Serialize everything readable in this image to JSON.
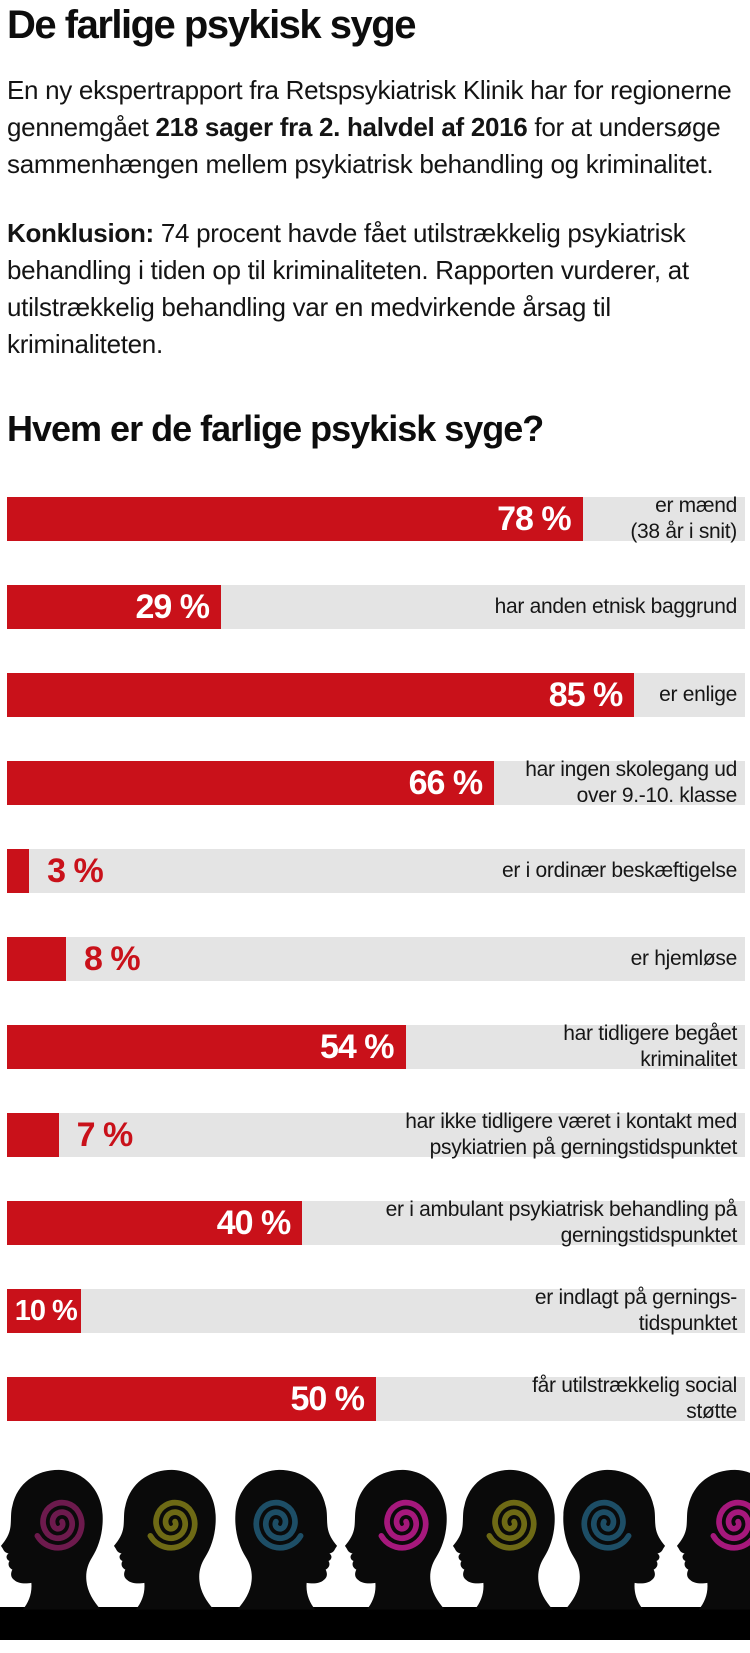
{
  "colors": {
    "bar_red": "#c9111a",
    "track_gray": "#e4e4e4",
    "text": "#121212",
    "value_white": "#ffffff",
    "silhouette": "#0a0a0a",
    "band": "#000000"
  },
  "title": "De farlige psykisk syge",
  "intro_segments": [
    {
      "text": "En ny ekspertrapport fra Retspsykiatrisk Klinik har for regionerne gennemgået ",
      "bold": false
    },
    {
      "text": "218 sager fra 2. halvdel af 2016",
      "bold": true
    },
    {
      "text": " for at undersøge sammenhængen mellem psykiatrisk behandling og kriminalitet.",
      "bold": false
    }
  ],
  "conclusion_segments": [
    {
      "text": "Konklusion: ",
      "bold": true
    },
    {
      "text": "74 procent havde fået utilstrækkelig psykiatrisk behandling i tiden op til kriminaliteten. Rapporten vurderer, at utilstrækkelig behandling var en medvirkende årsag til kriminaliteten.",
      "bold": false
    }
  ],
  "section_heading": "Hvem er de farlige psykisk syge?",
  "chart_data": {
    "type": "bar",
    "orientation": "horizontal",
    "unit": "%",
    "xlim": [
      0,
      100
    ],
    "title": "Hvem er de farlige psykisk syge?",
    "categories": [
      "er mænd\n(38 år i snit)",
      "har anden etnisk baggrund",
      "er enlige",
      "har ingen skolegang ud\nover 9.-10. klasse",
      "er i ordinær beskæftigelse",
      "er hjemløse",
      "har tidligere begået\nkriminalitet",
      "har ikke tidligere været i kontakt med\npsykiatrien på gerningstidspunktet",
      "er i ambulant psykiatrisk behandling på\ngerningstidspunktet",
      "er indlagt på gernings-\ntidspunktet",
      "får utilstrækkelig social\nstøtte"
    ],
    "values": [
      78,
      29,
      85,
      66,
      3,
      8,
      54,
      7,
      40,
      10,
      50
    ],
    "value_labels": [
      "78 %",
      "29 %",
      "85 %",
      "66 %",
      "3 %",
      "8 %",
      "54 %",
      "7 %",
      "40 %",
      "10 %",
      "50 %"
    ],
    "value_inside": [
      true,
      true,
      true,
      true,
      false,
      false,
      true,
      false,
      true,
      true,
      true
    ]
  },
  "footer_art": {
    "heads_count": 7,
    "spiral_colors": [
      "#6d1a4d",
      "#6e6a15",
      "#1d4e66",
      "#a6187c",
      "#6e6a15",
      "#1d4e66",
      "#a6187c"
    ],
    "facing": [
      "left",
      "left",
      "right",
      "left",
      "left",
      "right",
      "left"
    ]
  }
}
